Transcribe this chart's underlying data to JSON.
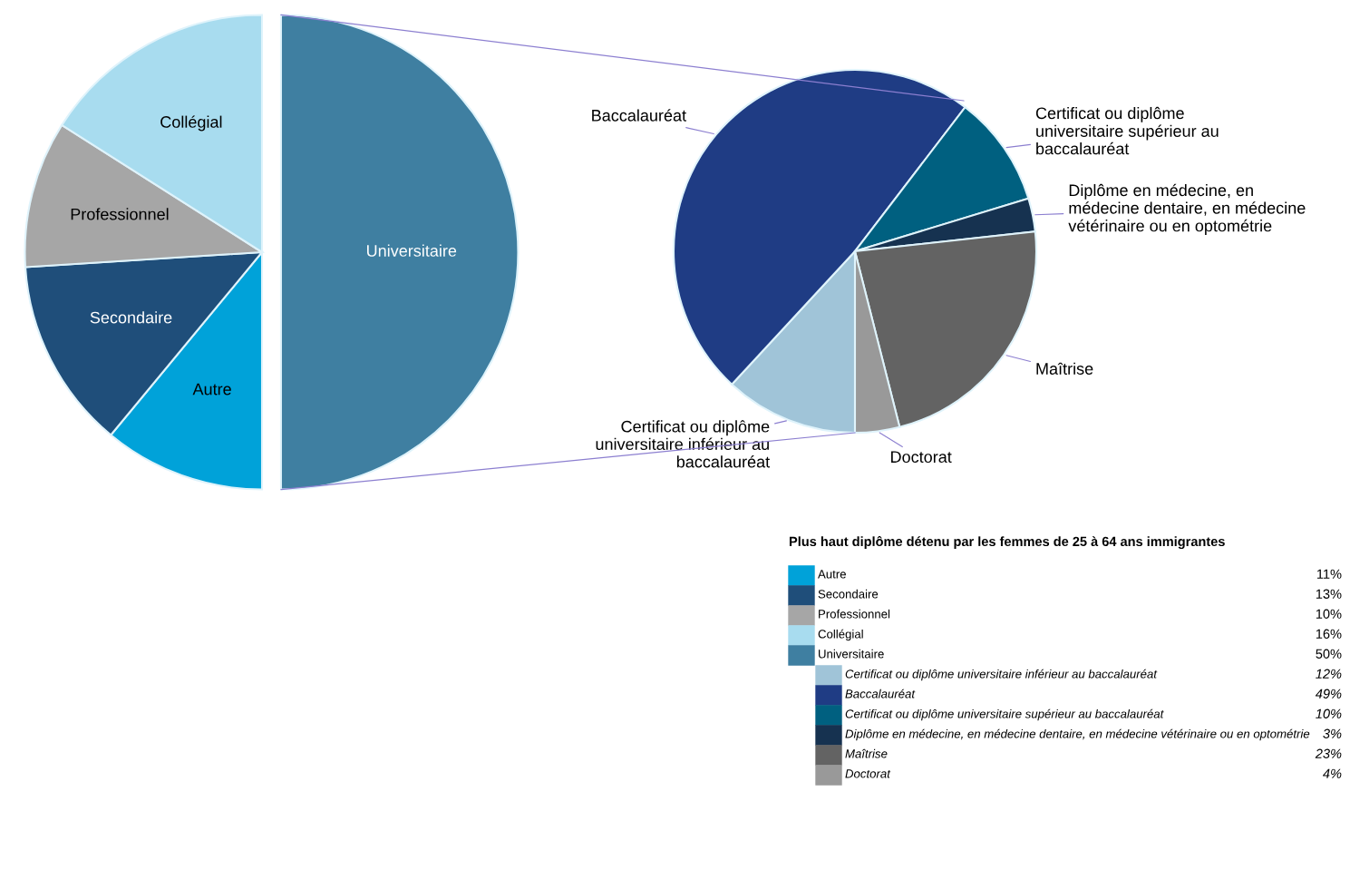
{
  "chart_data": [
    {
      "type": "pie",
      "title": "Plus haut diplôme détenu par les femmes de 25 à 64 ans immigrantes",
      "categories": [
        "Autre",
        "Secondaire",
        "Professionnel",
        "Collégial",
        "Universitaire"
      ],
      "values": [
        11,
        13,
        10,
        16,
        50
      ],
      "colors": [
        "#00a2d9",
        "#1f4e7a",
        "#a6a6a6",
        "#a8dcef",
        "#3f7fa1"
      ],
      "value_labels": [
        "11%",
        "13%",
        "10%",
        "16%",
        "50%"
      ],
      "legend": "bottom right"
    },
    {
      "type": "pie",
      "categories": [
        "Certificat ou diplôme\nuniversitaire inférieur au\nbaccalauréat",
        "Baccalauréat",
        "Certificat ou diplôme\nuniversitaire supérieur au\nbaccalauréat",
        "Diplôme en médecine, en\nmédecine dentaire, en médecine\nvétérinaire ou en optométrie",
        "Maîtrise",
        "Doctorat"
      ],
      "values": [
        12,
        49,
        10,
        3,
        23,
        4
      ],
      "colors": [
        "#a0c4d8",
        "#1f3c84",
        "#006080",
        "#163250",
        "#636363",
        "#999999"
      ],
      "value_labels": [
        "12%",
        "49%",
        "10%",
        "3%",
        "23%",
        "4%"
      ],
      "legend": "bottom right"
    }
  ]
}
